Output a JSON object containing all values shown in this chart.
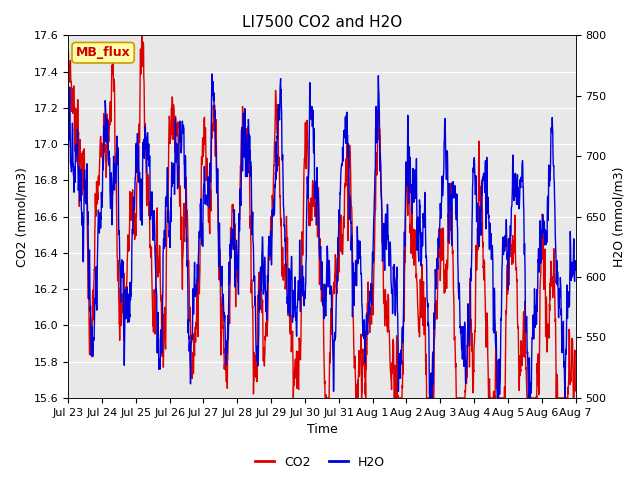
{
  "title": "LI7500 CO2 and H2O",
  "xlabel": "Time",
  "ylabel_left": "CO2 (mmol/m3)",
  "ylabel_right": "H2O (mmol/m3)",
  "co2_ylim": [
    15.6,
    17.6
  ],
  "h2o_ylim": [
    500,
    800
  ],
  "co2_yticks": [
    15.6,
    15.8,
    16.0,
    16.2,
    16.4,
    16.6,
    16.8,
    17.0,
    17.2,
    17.4,
    17.6
  ],
  "h2o_yticks": [
    500,
    550,
    600,
    650,
    700,
    750,
    800
  ],
  "xtick_labels": [
    "Jul 23",
    "Jul 24",
    "Jul 25",
    "Jul 26",
    "Jul 27",
    "Jul 28",
    "Jul 29",
    "Jul 30",
    "Jul 31",
    "Aug 1",
    "Aug 2",
    "Aug 3",
    "Aug 4",
    "Aug 5",
    "Aug 6",
    "Aug 7"
  ],
  "co2_color": "#dd0000",
  "h2o_color": "#0000dd",
  "legend_co2": "CO2",
  "legend_h2o": "H2O",
  "annotation_text": "MB_flux",
  "annotation_bg": "#ffffaa",
  "annotation_border": "#cc9900",
  "fig_bg": "#ffffff",
  "plot_bg": "#e8e8e8",
  "grid_color": "#ffffff",
  "title_fontsize": 11,
  "axis_fontsize": 9,
  "tick_fontsize": 8,
  "line_width": 1.0,
  "n_points": 2000
}
